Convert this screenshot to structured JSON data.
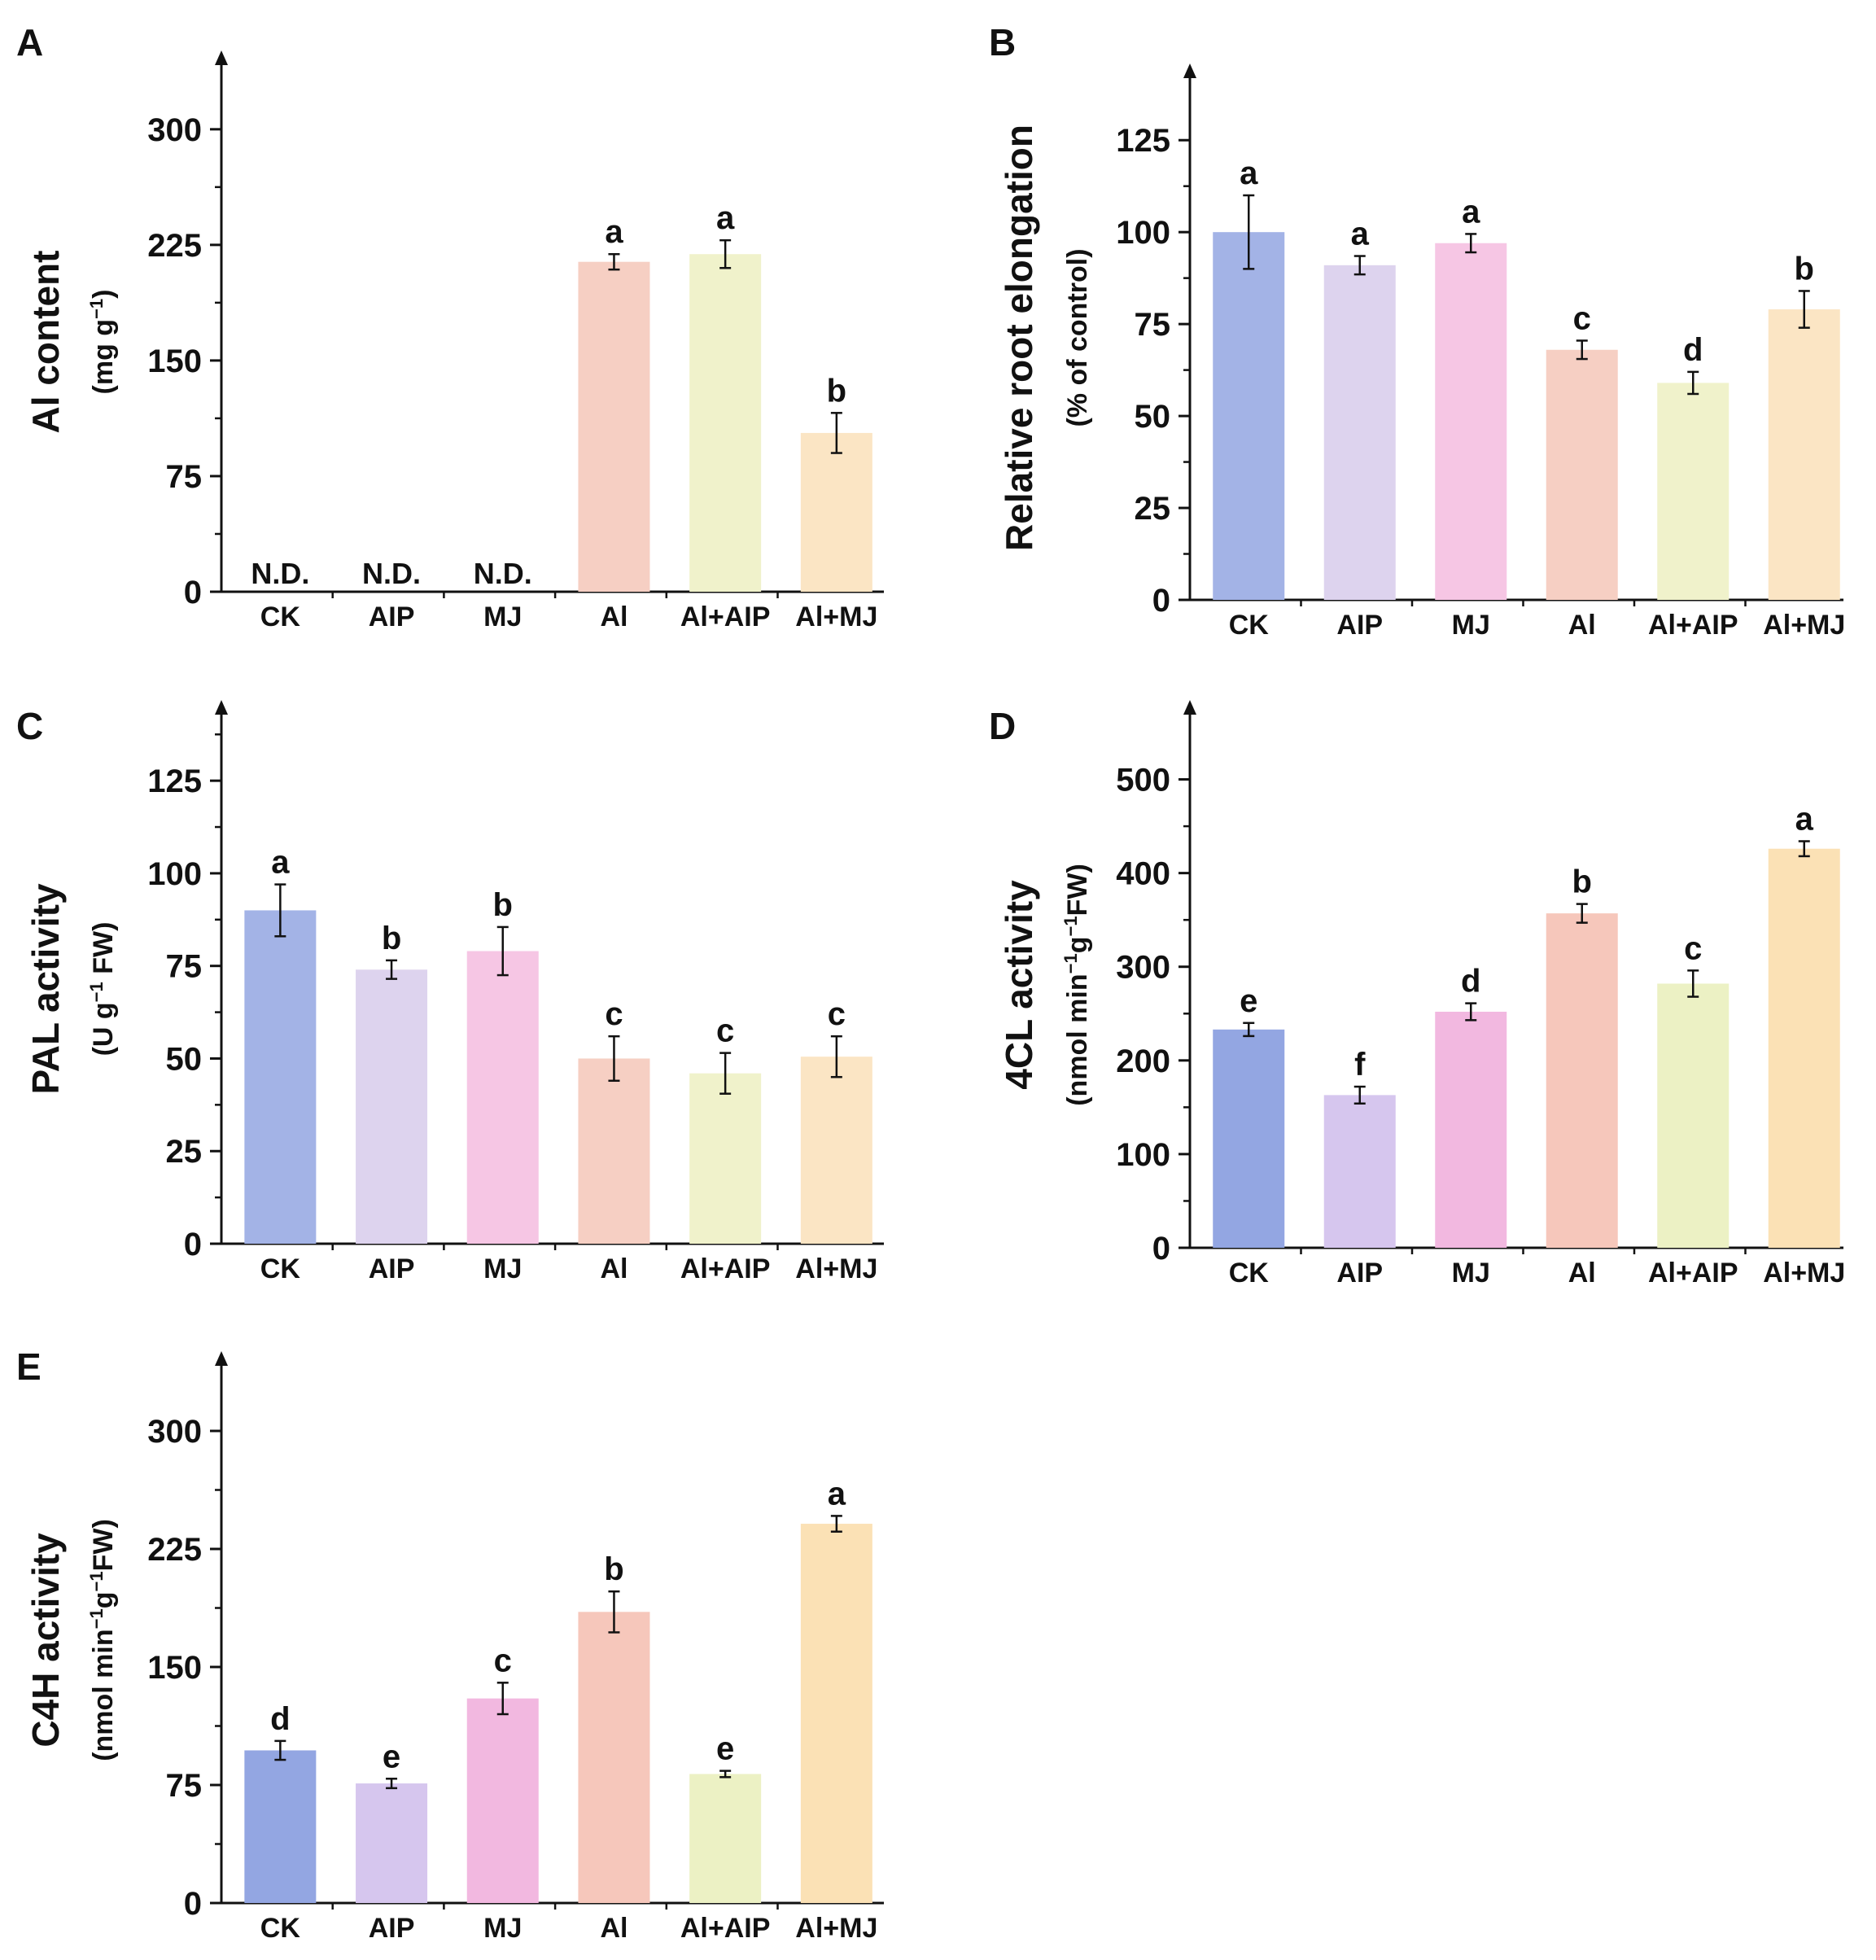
{
  "figure": {
    "palette": {
      "CK": "#a3b3e6",
      "AIP": "#ddd3ee",
      "MJ": "#f6c6e4",
      "Al": "#f6cfc3",
      "Al+AIP": "#f0f2cb",
      "Al+MJ": "#fbe5c4"
    },
    "palette_dark": {
      "CK": "#93a6e2",
      "AIP": "#d6c6ee",
      "MJ": "#f2b8e0",
      "Al": "#f6c7bb",
      "Al+AIP": "#ecf1c4",
      "Al+MJ": "#fbe1b5"
    }
  },
  "chart_data": [
    {
      "panel": "A",
      "type": "bar",
      "categories": [
        "CK",
        "AIP",
        "MJ",
        "Al",
        "Al+AIP",
        "Al+MJ"
      ],
      "values": [
        0,
        0,
        0,
        214,
        219,
        103
      ],
      "errors": [
        0,
        0,
        0,
        5,
        9,
        13
      ],
      "significance": [
        "",
        "",
        "",
        "a",
        "a",
        "b"
      ],
      "not_detected": [
        "N.D.",
        "N.D.",
        "N.D.",
        "",
        "",
        ""
      ],
      "ylabel": "Al content",
      "ylabel_unit": [
        "(mg g",
        "−1",
        ")"
      ],
      "yticks": [
        0,
        75,
        150,
        225,
        300
      ],
      "ylim": [
        0,
        330
      ],
      "palette": "light"
    },
    {
      "panel": "B",
      "type": "bar",
      "categories": [
        "CK",
        "AIP",
        "MJ",
        "Al",
        "Al+AIP",
        "Al+MJ"
      ],
      "values": [
        100,
        91,
        97,
        68,
        59,
        79
      ],
      "errors": [
        10,
        2.5,
        2.5,
        2.5,
        3,
        5
      ],
      "significance": [
        "a",
        "a",
        "a",
        "c",
        "d",
        "b"
      ],
      "ylabel": "Relative root elongation",
      "ylabel_unit": [
        "(% of control)"
      ],
      "yticks": [
        0,
        25,
        50,
        75,
        100,
        125
      ],
      "ylim": [
        0,
        137
      ],
      "palette": "light"
    },
    {
      "panel": "C",
      "type": "bar",
      "categories": [
        "CK",
        "AIP",
        "MJ",
        "Al",
        "Al+AIP",
        "Al+MJ"
      ],
      "values": [
        90,
        74,
        79,
        50,
        46,
        50.5
      ],
      "errors": [
        7,
        2.5,
        6.5,
        6,
        5.5,
        5.5
      ],
      "significance": [
        "a",
        "b",
        "b",
        "c",
        "c",
        "c"
      ],
      "ylabel": "PAL activity",
      "ylabel_unit": [
        "(U g",
        "−1",
        " FW)"
      ],
      "yticks": [
        0,
        25,
        50,
        75,
        100,
        125
      ],
      "ylim": [
        0,
        138
      ],
      "palette": "light"
    },
    {
      "panel": "D",
      "type": "bar",
      "categories": [
        "CK",
        "AIP",
        "MJ",
        "Al",
        "Al+AIP",
        "Al+MJ"
      ],
      "values": [
        233,
        163,
        252,
        357,
        282,
        426
      ],
      "errors": [
        7,
        9,
        9,
        10,
        14,
        8
      ],
      "significance": [
        "e",
        "f",
        "d",
        "b",
        "c",
        "a"
      ],
      "ylabel": "4CL activity",
      "ylabel_unit": [
        "(nmol min",
        "−1",
        "g",
        "−1",
        "FW)"
      ],
      "yticks": [
        0,
        100,
        200,
        300,
        400,
        500
      ],
      "ylim": [
        0,
        550
      ],
      "palette": "dark"
    },
    {
      "panel": "E",
      "type": "bar",
      "categories": [
        "CK",
        "AIP",
        "MJ",
        "Al",
        "Al+AIP",
        "Al+MJ"
      ],
      "values": [
        97,
        76,
        130,
        185,
        82,
        241
      ],
      "errors": [
        6,
        3,
        10,
        13,
        2,
        5
      ],
      "significance": [
        "d",
        "e",
        "c",
        "b",
        "e",
        "a"
      ],
      "ylabel": "C4H activity",
      "ylabel_unit": [
        "(nmol min",
        "−1",
        "g",
        "−1",
        "FW)"
      ],
      "yticks": [
        0,
        75,
        150,
        225,
        300
      ],
      "ylim": [
        0,
        330
      ],
      "palette": "dark"
    }
  ]
}
